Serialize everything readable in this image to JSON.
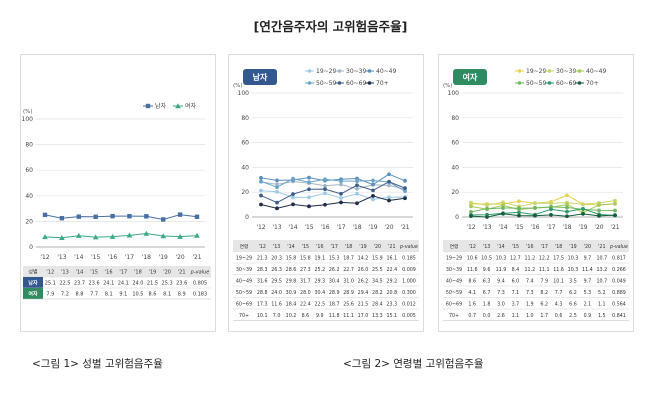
{
  "title": "[연간음주자의 고위험음주율]",
  "captions": [
    "<그림 1> 성별 고위험음주율",
    "<그림 2> 연령별 고위험음주율"
  ],
  "chart_data": [
    {
      "type": "line",
      "panel": "sex",
      "ylabel": "(%)",
      "ylim": [
        0,
        100
      ],
      "yticks": [
        0,
        20,
        40,
        60,
        80,
        100
      ],
      "categories": [
        "'12",
        "'13",
        "'14",
        "'15",
        "'16",
        "'17",
        "'18",
        "'19",
        "'20",
        "'21"
      ],
      "legend_placement": "top-right",
      "series": [
        {
          "name": "남자",
          "color": "#4a6fa5",
          "marker": "square",
          "values": [
            25.1,
            22.5,
            23.7,
            23.6,
            24.1,
            24.1,
            24.0,
            21.5,
            25.3,
            23.6
          ]
        },
        {
          "name": "여자",
          "color": "#3aa889",
          "marker": "triangle",
          "values": [
            7.9,
            7.2,
            8.8,
            7.7,
            8.1,
            9.1,
            10.5,
            8.6,
            8.1,
            8.9
          ]
        }
      ],
      "table": {
        "header": [
          "성별",
          "'12",
          "'13",
          "'14",
          "'15",
          "'16",
          "'17",
          "'18",
          "'19",
          "'20",
          "'21",
          "p-value"
        ],
        "rows": [
          [
            "남자",
            "25.1",
            "22.5",
            "23.7",
            "23.6",
            "24.1",
            "24.1",
            "24.0",
            "21.5",
            "25.3",
            "23.6",
            "0.805"
          ],
          [
            "여자",
            "7.9",
            "7.2",
            "8.8",
            "7.7",
            "8.1",
            "9.1",
            "10.5",
            "8.6",
            "8.1",
            "8.9",
            "0.183"
          ]
        ]
      }
    },
    {
      "type": "line",
      "panel": "남자",
      "ylabel": "(%)",
      "ylim": [
        0,
        100
      ],
      "yticks": [
        0,
        20,
        40,
        60,
        80,
        100
      ],
      "categories": [
        "'12",
        "'13",
        "'14",
        "'15",
        "'16",
        "'17",
        "'18",
        "'19",
        "'20",
        "'21"
      ],
      "legend_placement": "top",
      "series": [
        {
          "name": "19~29",
          "color": "#9ecae8",
          "values": [
            21.3,
            20.3,
            15.8,
            15.8,
            19.1,
            15.3,
            18.7,
            14.2,
            15.9,
            16.1
          ]
        },
        {
          "name": "30~39",
          "color": "#a7b6c8",
          "values": [
            28.3,
            26.3,
            28.6,
            27.3,
            25.2,
            26.2,
            22.7,
            26.0,
            25.5,
            22.4
          ]
        },
        {
          "name": "40~49",
          "color": "#5e8fba",
          "values": [
            31.6,
            29.5,
            29.8,
            31.7,
            29.3,
            30.4,
            31.0,
            26.2,
            34.5,
            29.2
          ]
        },
        {
          "name": "50~59",
          "color": "#6aa5c9",
          "values": [
            28.8,
            24.0,
            30.9,
            28.0,
            30.4,
            28.9,
            28.9,
            29.4,
            28.2,
            20.8
          ]
        },
        {
          "name": "60~69",
          "color": "#3f5f8a",
          "values": [
            17.3,
            11.6,
            18.4,
            22.4,
            22.5,
            18.7,
            25.6,
            21.5,
            28.4,
            23.3
          ]
        },
        {
          "name": "70+",
          "color": "#1e2e48",
          "values": [
            10.1,
            7.0,
            10.2,
            8.6,
            9.9,
            11.8,
            11.1,
            17.0,
            13.3,
            15.1
          ]
        }
      ],
      "table": {
        "header": [
          "연령",
          "'12",
          "'13",
          "'14",
          "'15",
          "'16",
          "'17",
          "'18",
          "'19",
          "'20",
          "'21",
          "p-value"
        ],
        "rows": [
          [
            "19~29",
            "21.3",
            "20.3",
            "15.8",
            "15.8",
            "19.1",
            "15.3",
            "18.7",
            "14.2",
            "15.9",
            "16.1",
            "0.185"
          ],
          [
            "30~39",
            "28.3",
            "26.3",
            "28.6",
            "27.3",
            "25.2",
            "26.2",
            "22.7",
            "26.0",
            "25.5",
            "22.4",
            "0.009"
          ],
          [
            "40~49",
            "31.6",
            "29.5",
            "29.8",
            "31.7",
            "29.3",
            "30.4",
            "31.0",
            "26.2",
            "34.5",
            "29.2",
            "1.000"
          ],
          [
            "50~59",
            "28.8",
            "24.0",
            "30.9",
            "28.0",
            "30.4",
            "28.9",
            "28.9",
            "29.4",
            "28.2",
            "20.8",
            "0.300"
          ],
          [
            "60~69",
            "17.3",
            "11.6",
            "18.4",
            "22.4",
            "22.5",
            "18.7",
            "25.6",
            "21.5",
            "28.4",
            "23.3",
            "0.012"
          ],
          [
            "70+",
            "10.1",
            "7.0",
            "10.2",
            "8.6",
            "9.9",
            "11.8",
            "11.1",
            "17.0",
            "13.3",
            "15.1",
            "0.005"
          ]
        ]
      }
    },
    {
      "type": "line",
      "panel": "여자",
      "ylabel": "(%)",
      "ylim": [
        0,
        100
      ],
      "yticks": [
        0,
        20,
        40,
        60,
        80,
        100
      ],
      "categories": [
        "'12",
        "'13",
        "'14",
        "'15",
        "'16",
        "'17",
        "'18",
        "'19",
        "'20",
        "'21"
      ],
      "legend_placement": "top",
      "series": [
        {
          "name": "19~29",
          "color": "#e9d24a",
          "values": [
            10.6,
            10.5,
            10.3,
            12.7,
            11.2,
            12.2,
            17.5,
            10.3,
            9.7,
            10.7
          ]
        },
        {
          "name": "30~39",
          "color": "#c8d66a",
          "values": [
            11.6,
            9.6,
            11.9,
            8.4,
            11.2,
            11.1,
            11.6,
            10.3,
            11.4,
            13.2
          ]
        },
        {
          "name": "40~49",
          "color": "#a5c95a",
          "values": [
            8.6,
            6.3,
            9.4,
            6.0,
            7.4,
            7.9,
            10.1,
            3.5,
            9.7,
            10.7
          ]
        },
        {
          "name": "50~59",
          "color": "#6fb95e",
          "values": [
            4.1,
            6.7,
            7.3,
            7.1,
            7.3,
            8.2,
            7.7,
            6.2,
            5.3,
            5.2
          ]
        },
        {
          "name": "60~69",
          "color": "#2f9a6a",
          "values": [
            1.6,
            1.8,
            3.0,
            3.7,
            1.9,
            6.2,
            4.3,
            6.6,
            2.1,
            1.1
          ]
        },
        {
          "name": "70+",
          "color": "#145c3c",
          "values": [
            0.7,
            0.0,
            2.6,
            1.1,
            1.0,
            1.7,
            0.6,
            2.5,
            0.9,
            1.5
          ]
        }
      ],
      "table": {
        "header": [
          "연령",
          "'12",
          "'13",
          "'14",
          "'15",
          "'16",
          "'17",
          "'18",
          "'19",
          "'20",
          "'21",
          "p-value"
        ],
        "rows": [
          [
            "19~29",
            "10.6",
            "10.5",
            "10.3",
            "12.7",
            "11.2",
            "12.2",
            "17.5",
            "10.3",
            "9.7",
            "10.7",
            "0.817"
          ],
          [
            "30~39",
            "11.6",
            "9.6",
            "11.9",
            "8.4",
            "11.2",
            "11.1",
            "11.6",
            "10.3",
            "11.4",
            "13.2",
            "0.266"
          ],
          [
            "40~49",
            "8.6",
            "6.3",
            "9.4",
            "6.0",
            "7.4",
            "7.9",
            "10.1",
            "3.5",
            "9.7",
            "10.7",
            "0.049"
          ],
          [
            "50~59",
            "4.1",
            "6.7",
            "7.3",
            "7.1",
            "7.3",
            "8.2",
            "7.7",
            "6.2",
            "5.3",
            "5.2",
            "0.889"
          ],
          [
            "60~69",
            "1.6",
            "1.8",
            "3.0",
            "3.7",
            "1.9",
            "6.2",
            "4.3",
            "6.6",
            "2.1",
            "1.1",
            "0.564"
          ],
          [
            "70+",
            "0.7",
            "0.0",
            "2.6",
            "1.1",
            "1.0",
            "1.7",
            "0.6",
            "2.5",
            "0.9",
            "1.5",
            "0.841"
          ]
        ]
      }
    }
  ],
  "badges": {
    "male": "남자",
    "female": "여자"
  },
  "colors": {
    "male_badge": "#33588f",
    "female_badge": "#2e8b62",
    "header_bg": "#e6e6e6"
  }
}
